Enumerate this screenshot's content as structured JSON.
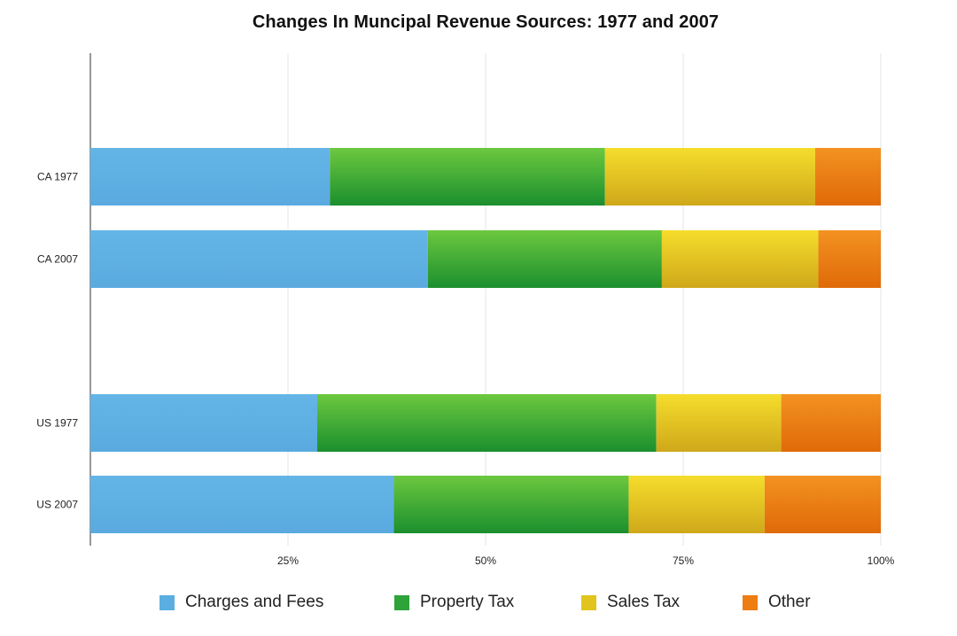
{
  "chart_data": {
    "type": "bar",
    "orientation": "horizontal",
    "stacked": true,
    "title": "Changes In Muncipal Revenue Sources: 1977 and 2007",
    "categories": [
      "CA 1977",
      "CA 2007",
      "US 1977",
      "US 2007"
    ],
    "series": [
      {
        "name": "Charges and Fees",
        "color": "#5aaee0",
        "values": [
          30.3,
          42.7,
          28.7,
          38.4
        ]
      },
      {
        "name": "Property Tax",
        "color": "#2ea33a",
        "values": [
          34.8,
          29.6,
          42.9,
          29.7
        ]
      },
      {
        "name": "Sales Tax",
        "color": "#e2c41e",
        "values": [
          26.6,
          19.8,
          15.8,
          17.2
        ]
      },
      {
        "name": "Other",
        "color": "#ee7d12",
        "values": [
          8.3,
          7.9,
          12.6,
          14.7
        ]
      }
    ],
    "xticks": [
      "25%",
      "50%",
      "75%",
      "100%"
    ],
    "xlim": [
      0,
      100
    ],
    "grid": true,
    "legend_position": "bottom"
  }
}
